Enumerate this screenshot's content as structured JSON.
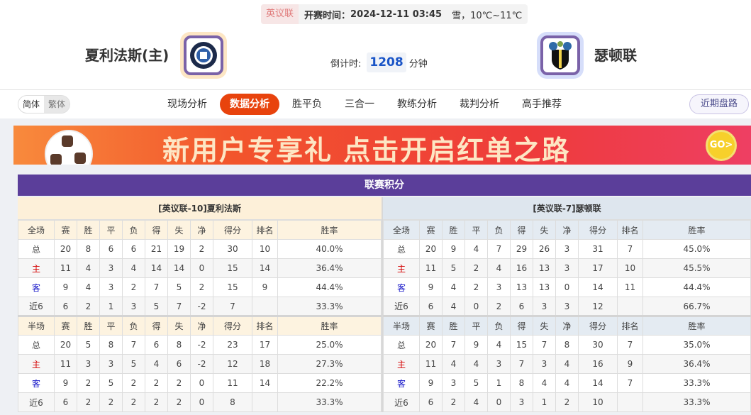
{
  "match": {
    "league": "英议联",
    "kickoff_label": "开赛时间：",
    "kickoff": "2024-12-11 03:45",
    "weather": "雪，10℃~11℃",
    "home": "夏利法斯(主)",
    "away": "瑟顿联",
    "countdown_label": "倒计时:",
    "countdown": "1208",
    "countdown_unit": "分钟"
  },
  "lang": {
    "simplified": "简体",
    "traditional": "繁体"
  },
  "tabs": [
    {
      "label": "现场分析"
    },
    {
      "label": "数据分析",
      "active": true
    },
    {
      "label": "胜平负"
    },
    {
      "label": "三合一"
    },
    {
      "label": "教练分析"
    },
    {
      "label": "裁判分析"
    },
    {
      "label": "高手推荐"
    }
  ],
  "recent_label": "近期盘路",
  "banner": {
    "text": "新用户专享礼  点击开启红单之路",
    "go": "GO>"
  },
  "standings": {
    "title": "联赛积分",
    "columns_full": [
      "全场",
      "赛",
      "胜",
      "平",
      "负",
      "得",
      "失",
      "净",
      "得分",
      "排名",
      "胜率"
    ],
    "columns_half": [
      "半场",
      "赛",
      "胜",
      "平",
      "负",
      "得",
      "失",
      "净",
      "得分",
      "排名",
      "胜率"
    ],
    "teams": [
      {
        "header": "[英议联-10]夏利法斯",
        "full": [
          [
            "总",
            "20",
            "8",
            "6",
            "6",
            "21",
            "19",
            "2",
            "30",
            "10",
            "40.0%"
          ],
          [
            "主",
            "11",
            "4",
            "3",
            "4",
            "14",
            "14",
            "0",
            "15",
            "14",
            "36.4%"
          ],
          [
            "客",
            "9",
            "4",
            "3",
            "2",
            "7",
            "5",
            "2",
            "15",
            "9",
            "44.4%"
          ],
          [
            "近6",
            "6",
            "2",
            "1",
            "3",
            "5",
            "7",
            "-2",
            "7",
            "",
            "33.3%"
          ]
        ],
        "half": [
          [
            "总",
            "20",
            "5",
            "8",
            "7",
            "6",
            "8",
            "-2",
            "23",
            "17",
            "25.0%"
          ],
          [
            "主",
            "11",
            "3",
            "3",
            "5",
            "4",
            "6",
            "-2",
            "12",
            "18",
            "27.3%"
          ],
          [
            "客",
            "9",
            "2",
            "5",
            "2",
            "2",
            "2",
            "0",
            "11",
            "14",
            "22.2%"
          ],
          [
            "近6",
            "6",
            "2",
            "2",
            "2",
            "2",
            "2",
            "0",
            "8",
            "",
            "33.3%"
          ]
        ]
      },
      {
        "header": "[英议联-7]瑟顿联",
        "full": [
          [
            "总",
            "20",
            "9",
            "4",
            "7",
            "29",
            "26",
            "3",
            "31",
            "7",
            "45.0%"
          ],
          [
            "主",
            "11",
            "5",
            "2",
            "4",
            "16",
            "13",
            "3",
            "17",
            "10",
            "45.5%"
          ],
          [
            "客",
            "9",
            "4",
            "2",
            "3",
            "13",
            "13",
            "0",
            "14",
            "11",
            "44.4%"
          ],
          [
            "近6",
            "6",
            "4",
            "0",
            "2",
            "6",
            "3",
            "3",
            "12",
            "",
            "66.7%"
          ]
        ],
        "half": [
          [
            "总",
            "20",
            "7",
            "9",
            "4",
            "15",
            "7",
            "8",
            "30",
            "7",
            "35.0%"
          ],
          [
            "主",
            "11",
            "4",
            "4",
            "3",
            "7",
            "3",
            "4",
            "16",
            "9",
            "36.4%"
          ],
          [
            "客",
            "9",
            "3",
            "5",
            "1",
            "8",
            "4",
            "4",
            "14",
            "7",
            "33.3%"
          ],
          [
            "近6",
            "6",
            "2",
            "4",
            "0",
            "3",
            "1",
            "2",
            "10",
            "",
            "33.3%"
          ]
        ]
      }
    ]
  },
  "colors": {
    "accent": "#e8430d",
    "title_bar": "#5b3e9a",
    "home_label": "#d40000",
    "away_label": "#1515c8",
    "countdown": "#1a55c7"
  }
}
